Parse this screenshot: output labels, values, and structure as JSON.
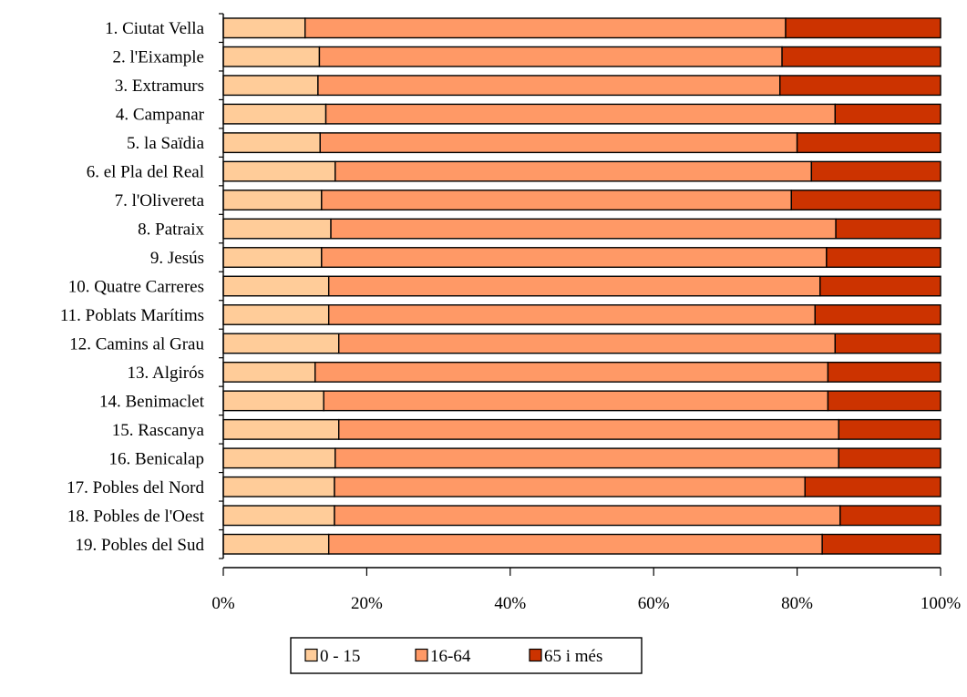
{
  "chart_data": {
    "type": "bar",
    "orientation": "horizontal",
    "stacked": "percent",
    "categories": [
      "1. Ciutat Vella",
      "2. l'Eixample",
      "3. Extramurs",
      "4. Campanar",
      "5. la Saïdia",
      "6. el Pla del Real",
      "7. l'Olivereta",
      "8. Patraix",
      "9. Jesús",
      "10. Quatre Carreres",
      "11. Poblats Marítims",
      "12. Camins al Grau",
      "13. Algirós",
      "14. Benimaclet",
      "15. Rascanya",
      "16. Benicalap",
      "17. Pobles del Nord",
      "18. Pobles de l'Oest",
      "19. Pobles del Sud"
    ],
    "series": [
      {
        "name": "0 - 15",
        "color": "#FFCC99",
        "values": [
          11.4,
          13.4,
          13.2,
          14.3,
          13.5,
          15.6,
          13.7,
          15.0,
          13.7,
          14.7,
          14.7,
          16.1,
          12.8,
          14.0,
          16.1,
          15.6,
          15.5,
          15.5,
          14.7
        ]
      },
      {
        "name": "16-64",
        "color": "#FF9966",
        "values": [
          67.0,
          64.5,
          64.4,
          71.0,
          66.5,
          66.4,
          65.5,
          70.4,
          70.4,
          68.5,
          67.8,
          69.2,
          71.5,
          70.3,
          69.7,
          70.2,
          65.6,
          70.5,
          68.8
        ]
      },
      {
        "name": "65 i més",
        "color": "#CC3300",
        "values": [
          21.6,
          22.1,
          22.4,
          14.7,
          20.0,
          18.0,
          20.8,
          14.6,
          15.9,
          16.8,
          17.5,
          14.7,
          15.7,
          15.7,
          14.2,
          14.2,
          18.9,
          14.0,
          16.5
        ]
      }
    ],
    "xlim": [
      0,
      100
    ],
    "x_ticks": [
      "0%",
      "20%",
      "40%",
      "60%",
      "80%",
      "100%"
    ],
    "grid": false,
    "legend": "bottom",
    "xlabel": "",
    "ylabel": "",
    "title": ""
  }
}
